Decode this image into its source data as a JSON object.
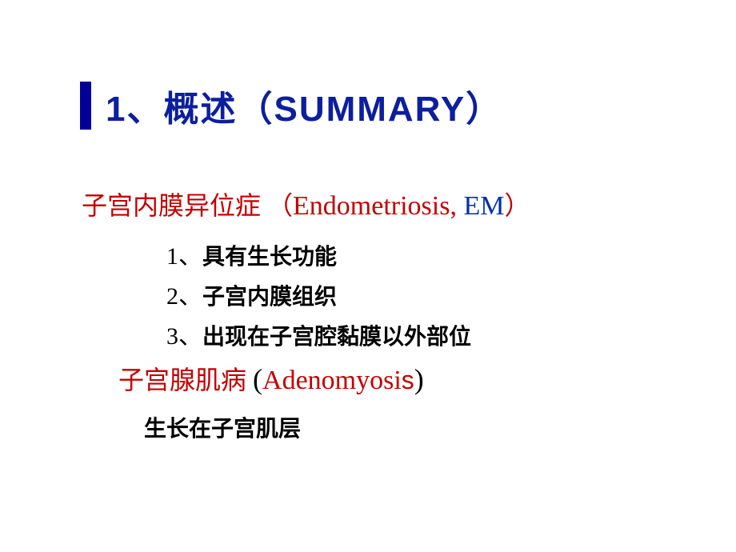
{
  "colors": {
    "accent_bar": "#000099",
    "title_color": "#0c1f9e",
    "red": "#c40000",
    "blue": "#0030b0",
    "body_text": "#000000",
    "background": "#ffffff"
  },
  "typography": {
    "title_fontsize": 44,
    "heading_fontsize": 32,
    "item_fontsize": 28,
    "sub_fontsize": 28
  },
  "title": "1、概述（SUMMARY）",
  "heading1": {
    "cn": "子宫内膜异位症",
    "paren_open": "（",
    "en1": "Endometriosis",
    "comma": ",  ",
    "en2": "EM",
    "paren_close": "）"
  },
  "items": [
    {
      "num": "1、",
      "text": "具有生长功能"
    },
    {
      "num": "2、",
      "text": "子宫内膜组织"
    },
    {
      "num": "3、",
      "text": "出现在子宫腔黏膜以外部位"
    }
  ],
  "heading2": {
    "cn": "子宫腺肌病",
    "spacer": "   ",
    "paren_open": "(",
    "en": "Adenomyosi",
    "en_suffix": "s",
    "paren_close": ")"
  },
  "subline": "生长在子宫肌层"
}
